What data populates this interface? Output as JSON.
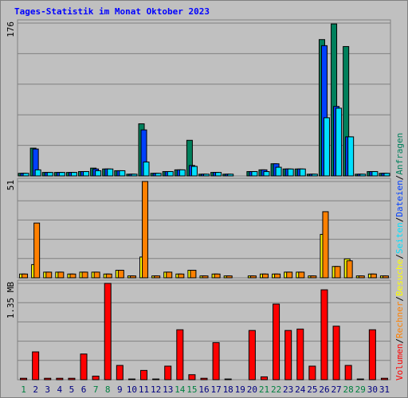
{
  "chart_data": [
    {
      "type": "bar",
      "title": "Tages-Statistik im Monat Oktober 2023",
      "categories": [
        "1",
        "2",
        "3",
        "4",
        "5",
        "6",
        "7",
        "8",
        "9",
        "10",
        "11",
        "12",
        "13",
        "14",
        "15",
        "16",
        "17",
        "18",
        "19",
        "20",
        "21",
        "22",
        "23",
        "24",
        "25",
        "26",
        "27",
        "28",
        "29",
        "30",
        "31"
      ],
      "category_colors": [
        "#008040",
        "#000080",
        "#000080",
        "#000080",
        "#000080",
        "#000080",
        "#008040",
        "#008040",
        "#000080",
        "#000080",
        "#000080",
        "#000080",
        "#000080",
        "#008040",
        "#008040",
        "#000080",
        "#000080",
        "#000080",
        "#000080",
        "#000080",
        "#008040",
        "#008040",
        "#000080",
        "#000080",
        "#000080",
        "#000080",
        "#000080",
        "#008040",
        "#008040",
        "#000080",
        "#000080"
      ],
      "ylim": [
        0,
        176
      ],
      "yticks": [
        176
      ],
      "series": [
        {
          "name": "Anfragen",
          "color": "#00805c",
          "values": [
            3,
            32,
            4,
            4,
            4,
            5,
            9,
            8,
            6,
            2,
            60,
            3,
            5,
            7,
            41,
            2,
            4,
            2,
            0,
            5,
            7,
            14,
            8,
            8,
            2,
            157,
            175,
            149,
            2,
            5,
            3
          ]
        },
        {
          "name": "Dateien",
          "color": "#0040ff",
          "values": [
            3,
            31,
            4,
            4,
            4,
            5,
            8,
            8,
            6,
            2,
            53,
            3,
            5,
            7,
            12,
            2,
            4,
            2,
            0,
            5,
            7,
            14,
            8,
            8,
            2,
            150,
            80,
            45,
            2,
            5,
            3
          ]
        },
        {
          "name": "Seiten",
          "color": "#00e0ff",
          "values": [
            3,
            7,
            4,
            4,
            4,
            5,
            6,
            8,
            6,
            2,
            16,
            3,
            5,
            7,
            11,
            2,
            4,
            2,
            0,
            5,
            5,
            10,
            8,
            8,
            2,
            67,
            78,
            45,
            2,
            5,
            3
          ]
        }
      ]
    },
    {
      "type": "bar",
      "ylim": [
        0,
        51
      ],
      "yticks": [
        51
      ],
      "series": [
        {
          "name": "Besuche",
          "color": "#ffff00",
          "values": [
            2,
            7,
            3,
            3,
            2,
            3,
            3,
            2,
            4,
            1,
            11,
            1,
            3,
            2,
            4,
            1,
            2,
            1,
            0,
            1,
            2,
            2,
            3,
            3,
            1,
            23,
            6,
            10,
            1,
            2,
            1
          ]
        },
        {
          "name": "Rechner",
          "color": "#ff8000",
          "values": [
            2,
            29,
            3,
            3,
            2,
            3,
            3,
            2,
            4,
            1,
            51,
            1,
            3,
            2,
            4,
            1,
            2,
            1,
            0,
            1,
            2,
            2,
            3,
            3,
            1,
            35,
            6,
            9,
            1,
            2,
            1
          ]
        }
      ]
    },
    {
      "type": "bar",
      "ylim": [
        0,
        1.35
      ],
      "yticks": [
        {
          "value": 1.35,
          "label": "1.35 MB"
        }
      ],
      "series": [
        {
          "name": "Volumen",
          "color": "#ff0000",
          "values": [
            0.02,
            0.39,
            0.02,
            0.02,
            0.02,
            0.36,
            0.05,
            1.35,
            0.2,
            0.01,
            0.13,
            0.01,
            0.19,
            0.7,
            0.07,
            0.02,
            0.52,
            0.01,
            0,
            0.69,
            0.04,
            1.06,
            0.69,
            0.71,
            0.19,
            1.26,
            0.75,
            0.2,
            0.01,
            0.7,
            0.02
          ]
        }
      ]
    }
  ],
  "legend_separator": "/"
}
